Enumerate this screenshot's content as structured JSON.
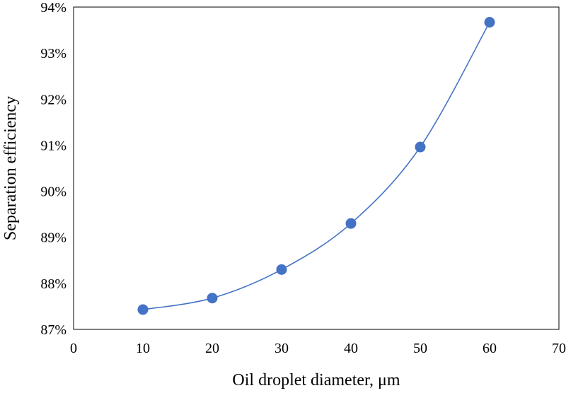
{
  "chart_data": {
    "type": "scatter",
    "smooth_line": true,
    "xlabel": "Oil droplet diameter,  μm",
    "ylabel": "Separation efficiency",
    "xlim": [
      0,
      70
    ],
    "ylim": [
      87,
      94
    ],
    "x_ticks": [
      0,
      10,
      20,
      30,
      40,
      50,
      60,
      70
    ],
    "x_tick_labels": [
      "0",
      "10",
      "20",
      "30",
      "40",
      "50",
      "60",
      "70"
    ],
    "y_ticks": [
      87,
      88,
      89,
      90,
      91,
      92,
      93,
      94
    ],
    "y_tick_labels": [
      "87%",
      "88%",
      "89%",
      "90%",
      "91%",
      "92%",
      "93%",
      "94%"
    ],
    "grid": false,
    "legend": "none",
    "series": [
      {
        "x": [
          10,
          20,
          30,
          40,
          50,
          60
        ],
        "y": [
          87.43,
          87.68,
          88.3,
          89.3,
          90.96,
          93.67
        ],
        "color": "#4472C4",
        "marker_color": "#4472C4"
      }
    ]
  }
}
